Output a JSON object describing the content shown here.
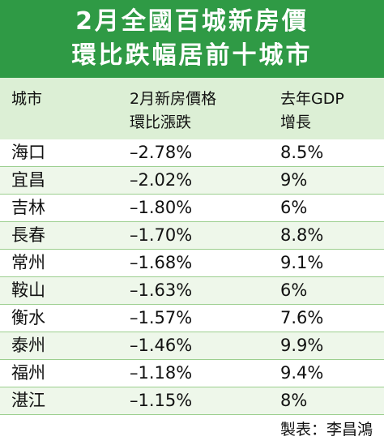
{
  "header": {
    "title_lines": [
      "2月全國百城新房價",
      "環比跌幅居前十城市"
    ]
  },
  "table": {
    "columns": [
      [
        "城市"
      ],
      [
        "2月新房價格",
        "環比漲跌"
      ],
      [
        "去年GDP",
        "增長"
      ]
    ],
    "rows": [
      [
        "海口",
        "–2.78%",
        "8.5%"
      ],
      [
        "宜昌",
        "–2.02%",
        "9%"
      ],
      [
        "吉林",
        "–1.80%",
        "6%"
      ],
      [
        "長春",
        "–1.70%",
        "8.8%"
      ],
      [
        "常州",
        "–1.68%",
        "9.1%"
      ],
      [
        "鞍山",
        "–1.63%",
        "6%"
      ],
      [
        "衡水",
        "–1.57%",
        "7.6%"
      ],
      [
        "泰州",
        "–1.46%",
        "9.9%"
      ],
      [
        "福州",
        "–1.18%",
        "9.4%"
      ],
      [
        "湛江",
        "–1.15%",
        "8%"
      ]
    ]
  },
  "footer": "製表：李昌鴻"
}
